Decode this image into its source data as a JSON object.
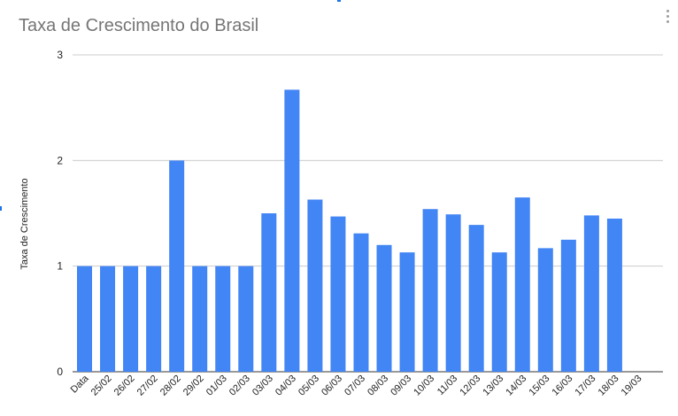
{
  "chart_data": {
    "type": "bar",
    "title": "Taxa de Crescimento do Brasil",
    "xlabel": "",
    "ylabel": "Taxa de Crescimento",
    "ylim": [
      0,
      3
    ],
    "yticks": [
      "0",
      "1",
      "2",
      "3"
    ],
    "grid": true,
    "legend": "none",
    "bar_color": "#4285f4",
    "categories": [
      "Data",
      "25/02",
      "26/02",
      "27/02",
      "28/02",
      "29/02",
      "01/03",
      "02/03",
      "03/03",
      "04/03",
      "05/03",
      "06/03",
      "07/03",
      "08/03",
      "09/03",
      "10/03",
      "11/03",
      "12/03",
      "13/03",
      "14/03",
      "15/03",
      "16/03",
      "17/03",
      "18/03",
      "19/03"
    ],
    "values": [
      1.0,
      1.0,
      1.0,
      1.0,
      2.0,
      1.0,
      1.0,
      1.0,
      1.5,
      2.67,
      1.63,
      1.47,
      1.31,
      1.2,
      1.13,
      1.54,
      1.49,
      1.39,
      1.13,
      1.65,
      1.17,
      1.25,
      1.48,
      1.45,
      null
    ]
  },
  "ui": {
    "menu_icon": "more-vert-icon"
  }
}
